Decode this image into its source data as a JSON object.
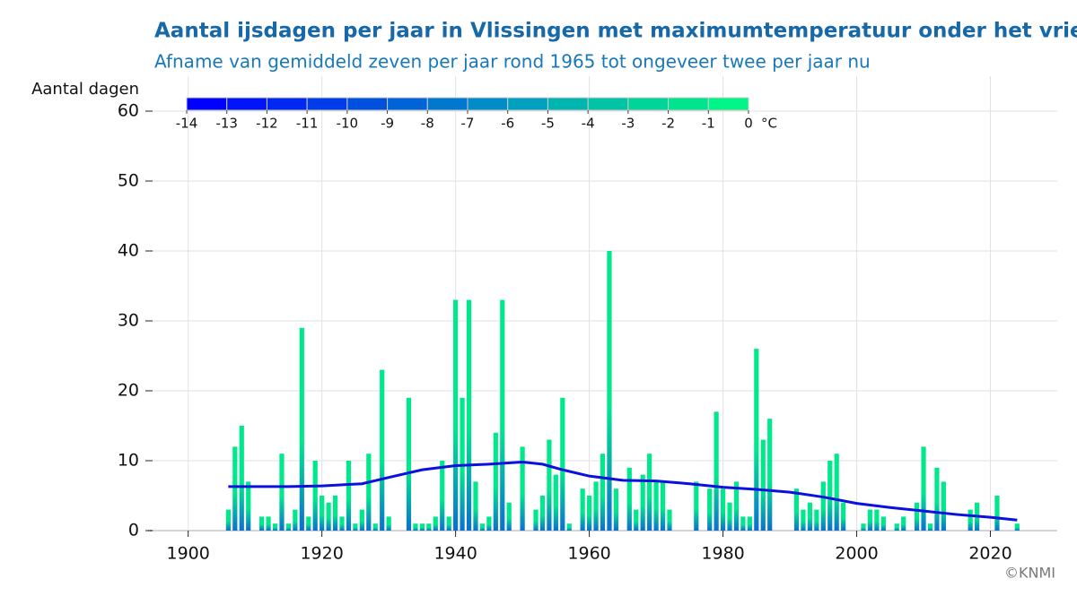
{
  "chart_data": {
    "type": "bar",
    "title": "Aantal ijsdagen per jaar in Vlissingen met maximumtemperatuur onder het vriespunt",
    "subtitle": "Afname van gemiddeld zeven per jaar rond 1965 tot ongeveer twee per jaar nu",
    "y_label": "Aantal dagen",
    "credit": "©KNMI",
    "x": [
      1906,
      1907,
      1908,
      1909,
      1911,
      1912,
      1913,
      1914,
      1915,
      1916,
      1917,
      1918,
      1919,
      1920,
      1921,
      1922,
      1923,
      1924,
      1925,
      1926,
      1927,
      1928,
      1929,
      1930,
      1933,
      1934,
      1935,
      1936,
      1937,
      1938,
      1939,
      1940,
      1941,
      1942,
      1943,
      1944,
      1945,
      1946,
      1947,
      1948,
      1950,
      1952,
      1953,
      1954,
      1955,
      1956,
      1957,
      1959,
      1960,
      1961,
      1962,
      1963,
      1964,
      1966,
      1967,
      1968,
      1969,
      1970,
      1971,
      1972,
      1976,
      1978,
      1979,
      1980,
      1981,
      1982,
      1983,
      1984,
      1985,
      1986,
      1987,
      1991,
      1992,
      1993,
      1994,
      1995,
      1996,
      1997,
      1998,
      2001,
      2002,
      2003,
      2004,
      2006,
      2007,
      2009,
      2010,
      2011,
      2012,
      2013,
      2017,
      2018,
      2021,
      2024
    ],
    "values": [
      3,
      12,
      15,
      7,
      2,
      2,
      1,
      11,
      1,
      3,
      29,
      2,
      10,
      5,
      4,
      5,
      2,
      10,
      1,
      3,
      11,
      1,
      23,
      2,
      19,
      1,
      1,
      1,
      2,
      10,
      2,
      33,
      19,
      33,
      7,
      1,
      2,
      14,
      33,
      4,
      12,
      3,
      5,
      13,
      8,
      19,
      1,
      6,
      5,
      7,
      11,
      40,
      6,
      9,
      3,
      8,
      11,
      7,
      7,
      3,
      7,
      6,
      17,
      6,
      4,
      7,
      2,
      2,
      26,
      13,
      16,
      6,
      3,
      4,
      3,
      7,
      10,
      11,
      4,
      1,
      3,
      3,
      2,
      1,
      2,
      4,
      12,
      1,
      9,
      7,
      3,
      4,
      5,
      1
    ],
    "bar_colors": [
      "#0a6fd0",
      "#00e88c"
    ],
    "trend": {
      "color": "#0a10e0",
      "x": [
        1906,
        1915,
        1920,
        1926,
        1930,
        1935,
        1940,
        1945,
        1950,
        1953,
        1956,
        1960,
        1965,
        1970,
        1975,
        1980,
        1985,
        1990,
        1995,
        2000,
        2005,
        2010,
        2015,
        2020,
        2024
      ],
      "values": [
        6.3,
        6.3,
        6.4,
        6.7,
        7.6,
        8.7,
        9.3,
        9.5,
        9.8,
        9.5,
        8.7,
        7.8,
        7.2,
        7.1,
        6.7,
        6.2,
        5.9,
        5.5,
        4.8,
        3.9,
        3.3,
        2.8,
        2.3,
        1.9,
        1.5
      ]
    },
    "colorbar": {
      "ticks": [
        -14,
        -13,
        -12,
        -11,
        -10,
        -9,
        -8,
        -7,
        -6,
        -5,
        -4,
        -3,
        -2,
        -1,
        0
      ],
      "unit": "°C",
      "colors": [
        "#0000ff",
        "#0014f8",
        "#0028f0",
        "#003ce8",
        "#0050e0",
        "#0064d8",
        "#0078d0",
        "#008cc8",
        "#00a0be",
        "#00b4b0",
        "#00c4a4",
        "#00d498",
        "#00e490",
        "#00f488"
      ]
    },
    "xlim": [
      1894,
      2030
    ],
    "xticks": [
      1900,
      1920,
      1940,
      1960,
      1980,
      2000,
      2020
    ],
    "ylim": [
      0,
      60
    ],
    "yticks": [
      0,
      10,
      20,
      30,
      40,
      50,
      60
    ],
    "grid": true
  }
}
